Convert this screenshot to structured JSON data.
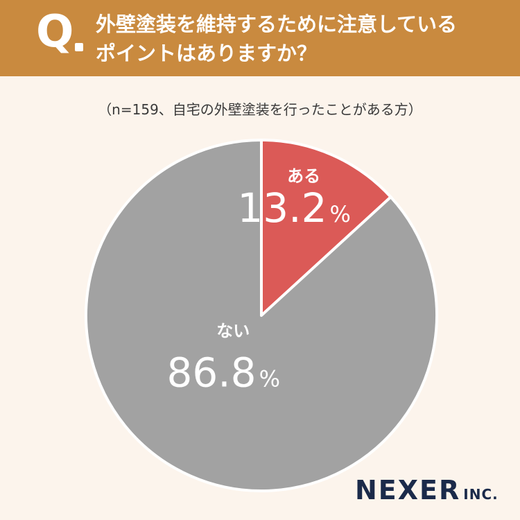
{
  "header": {
    "q_mark": "Q",
    "question": "外壁塗装を維持するために注意している\nポイントはありますか？"
  },
  "sample_note": "（n=159、自宅の外壁塗装を行ったことがある方）",
  "colors": {
    "header": "#c98a3f",
    "background": "#fcf4ec",
    "slice_yes": "#db5a57",
    "slice_no": "#a2a2a2",
    "logo": "#1b2a4a"
  },
  "logo": {
    "name": "NEXER",
    "suffix": "INC."
  },
  "chart_data": {
    "type": "pie",
    "title": "",
    "unit": "%",
    "slices": [
      {
        "label": "ある",
        "value": 13.2,
        "value_text": "13.2",
        "color": "#db5a57"
      },
      {
        "label": "ない",
        "value": 86.8,
        "value_text": "86.8",
        "color": "#a2a2a2"
      }
    ],
    "start_angle": "12 o'clock",
    "direction": "clockwise"
  }
}
